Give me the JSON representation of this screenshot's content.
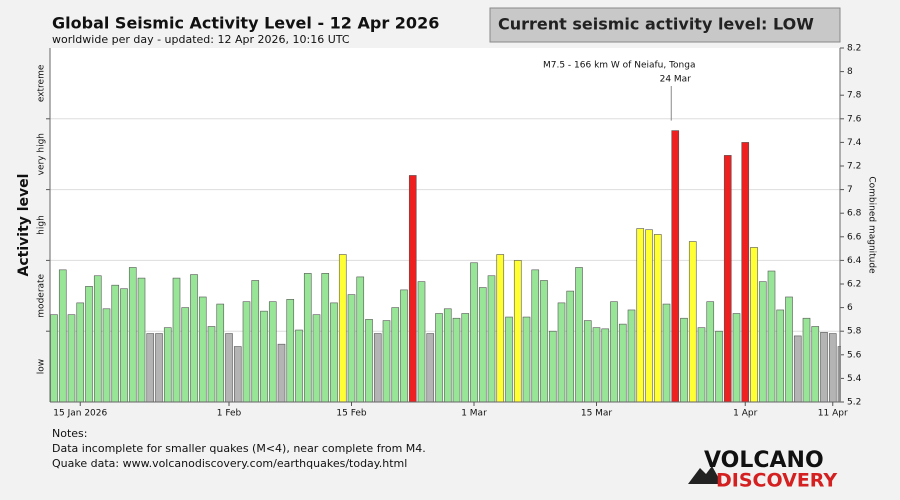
{
  "chart_data": {
    "type": "bar",
    "title": "Global Seismic Activity Level - 12 Apr 2026",
    "subtitle": "worldwide per day - updated: 12 Apr 2026, 10:16 UTC",
    "status": "Current seismic activity level: LOW",
    "ylabel_left": "Activity level",
    "ylabel_right": "Combined magnitude",
    "categories": [
      null,
      null,
      null,
      "15 Jan 2026",
      null,
      null,
      null,
      null,
      null,
      null,
      null,
      null,
      null,
      null,
      null,
      null,
      null,
      null,
      null,
      null,
      "1 Feb",
      null,
      null,
      null,
      null,
      null,
      null,
      null,
      null,
      null,
      null,
      null,
      null,
      null,
      "15 Feb",
      null,
      null,
      null,
      null,
      null,
      null,
      null,
      null,
      null,
      null,
      null,
      null,
      null,
      "1 Mar",
      null,
      null,
      null,
      null,
      null,
      null,
      null,
      null,
      null,
      null,
      null,
      null,
      null,
      "15 Mar",
      null,
      null,
      null,
      null,
      null,
      null,
      null,
      null,
      null,
      null,
      null,
      null,
      null,
      null,
      null,
      null,
      "1 Apr",
      null,
      null,
      null,
      null,
      null,
      null,
      null,
      null,
      null,
      "11 Apr",
      null
    ],
    "values": [
      5.94,
      6.32,
      5.94,
      6.04,
      6.18,
      6.27,
      5.99,
      6.19,
      6.16,
      6.34,
      6.25,
      5.78,
      5.78,
      5.83,
      6.25,
      6.0,
      6.28,
      6.09,
      5.84,
      6.03,
      5.78,
      5.67,
      6.05,
      6.23,
      5.97,
      6.05,
      5.69,
      6.07,
      5.81,
      6.29,
      5.94,
      6.29,
      6.04,
      6.45,
      6.11,
      6.26,
      5.9,
      5.78,
      5.89,
      6.0,
      6.15,
      7.12,
      6.22,
      5.78,
      5.95,
      5.99,
      5.91,
      5.95,
      6.38,
      6.17,
      6.27,
      6.45,
      5.92,
      6.4,
      5.92,
      6.32,
      6.23,
      5.8,
      6.04,
      6.14,
      6.34,
      5.89,
      5.83,
      5.82,
      6.05,
      5.86,
      5.98,
      6.67,
      6.66,
      6.62,
      6.03,
      7.5,
      5.91,
      6.56,
      5.83,
      6.05,
      5.8,
      7.29,
      5.95,
      7.4,
      6.51,
      6.22,
      6.31,
      5.98,
      6.09,
      5.76,
      5.91,
      5.84,
      5.79,
      5.78,
      5.67
    ],
    "colors": [
      "#98e598",
      "#98e598",
      "#98e598",
      "#98e598",
      "#98e598",
      "#98e598",
      "#98e598",
      "#98e598",
      "#98e598",
      "#98e598",
      "#98e598",
      "#b4b4b4",
      "#b4b4b4",
      "#98e598",
      "#98e598",
      "#98e598",
      "#98e598",
      "#98e598",
      "#98e598",
      "#98e598",
      "#b4b4b4",
      "#b4b4b4",
      "#98e598",
      "#98e598",
      "#98e598",
      "#98e598",
      "#b4b4b4",
      "#98e598",
      "#98e598",
      "#98e598",
      "#98e598",
      "#98e598",
      "#98e598",
      "#ffff33",
      "#98e598",
      "#98e598",
      "#98e598",
      "#b4b4b4",
      "#98e598",
      "#98e598",
      "#98e598",
      "#ee2020",
      "#98e598",
      "#b4b4b4",
      "#98e598",
      "#98e598",
      "#98e598",
      "#98e598",
      "#98e598",
      "#98e598",
      "#98e598",
      "#ffff33",
      "#98e598",
      "#ffff33",
      "#98e598",
      "#98e598",
      "#98e598",
      "#98e598",
      "#98e598",
      "#98e598",
      "#98e598",
      "#98e598",
      "#98e598",
      "#98e598",
      "#98e598",
      "#98e598",
      "#98e598",
      "#ffff33",
      "#ffff33",
      "#ffff33",
      "#98e598",
      "#ee2020",
      "#98e598",
      "#ffff33",
      "#98e598",
      "#98e598",
      "#98e598",
      "#ee2020",
      "#98e598",
      "#ee2020",
      "#ffff33",
      "#98e598",
      "#98e598",
      "#98e598",
      "#98e598",
      "#b4b4b4",
      "#98e598",
      "#98e598",
      "#b4b4b4",
      "#b4b4b4",
      "#b4b4b4"
    ],
    "ylim": [
      5.2,
      8.2
    ],
    "yticks": [
      5.2,
      5.4,
      5.6,
      5.8,
      6,
      6.2,
      6.4,
      6.6,
      6.8,
      7,
      7.2,
      7.4,
      7.6,
      7.8,
      8,
      8.2
    ],
    "level_bands": [
      {
        "label": "low",
        "from": 5.2,
        "to": 5.8
      },
      {
        "label": "moderate",
        "from": 5.8,
        "to": 6.4
      },
      {
        "label": "high",
        "from": 6.4,
        "to": 7.0
      },
      {
        "label": "very high",
        "from": 7.0,
        "to": 7.6
      },
      {
        "label": "extreme",
        "from": 7.6,
        "to": 8.2
      }
    ],
    "annotations": [
      {
        "text": "M7.5 - 166 km W of Neiafu, Tonga",
        "date": "24 Mar",
        "index": 71
      }
    ],
    "grid": true
  },
  "notes": [
    "Notes:",
    "Data incomplete for smaller quakes (M<4), near complete from M4.",
    "Quake data: www.volcanodiscovery.com/earthquakes/today.html"
  ],
  "logo": {
    "top": "VOLCANO",
    "bottom": "DISCOVERY"
  }
}
